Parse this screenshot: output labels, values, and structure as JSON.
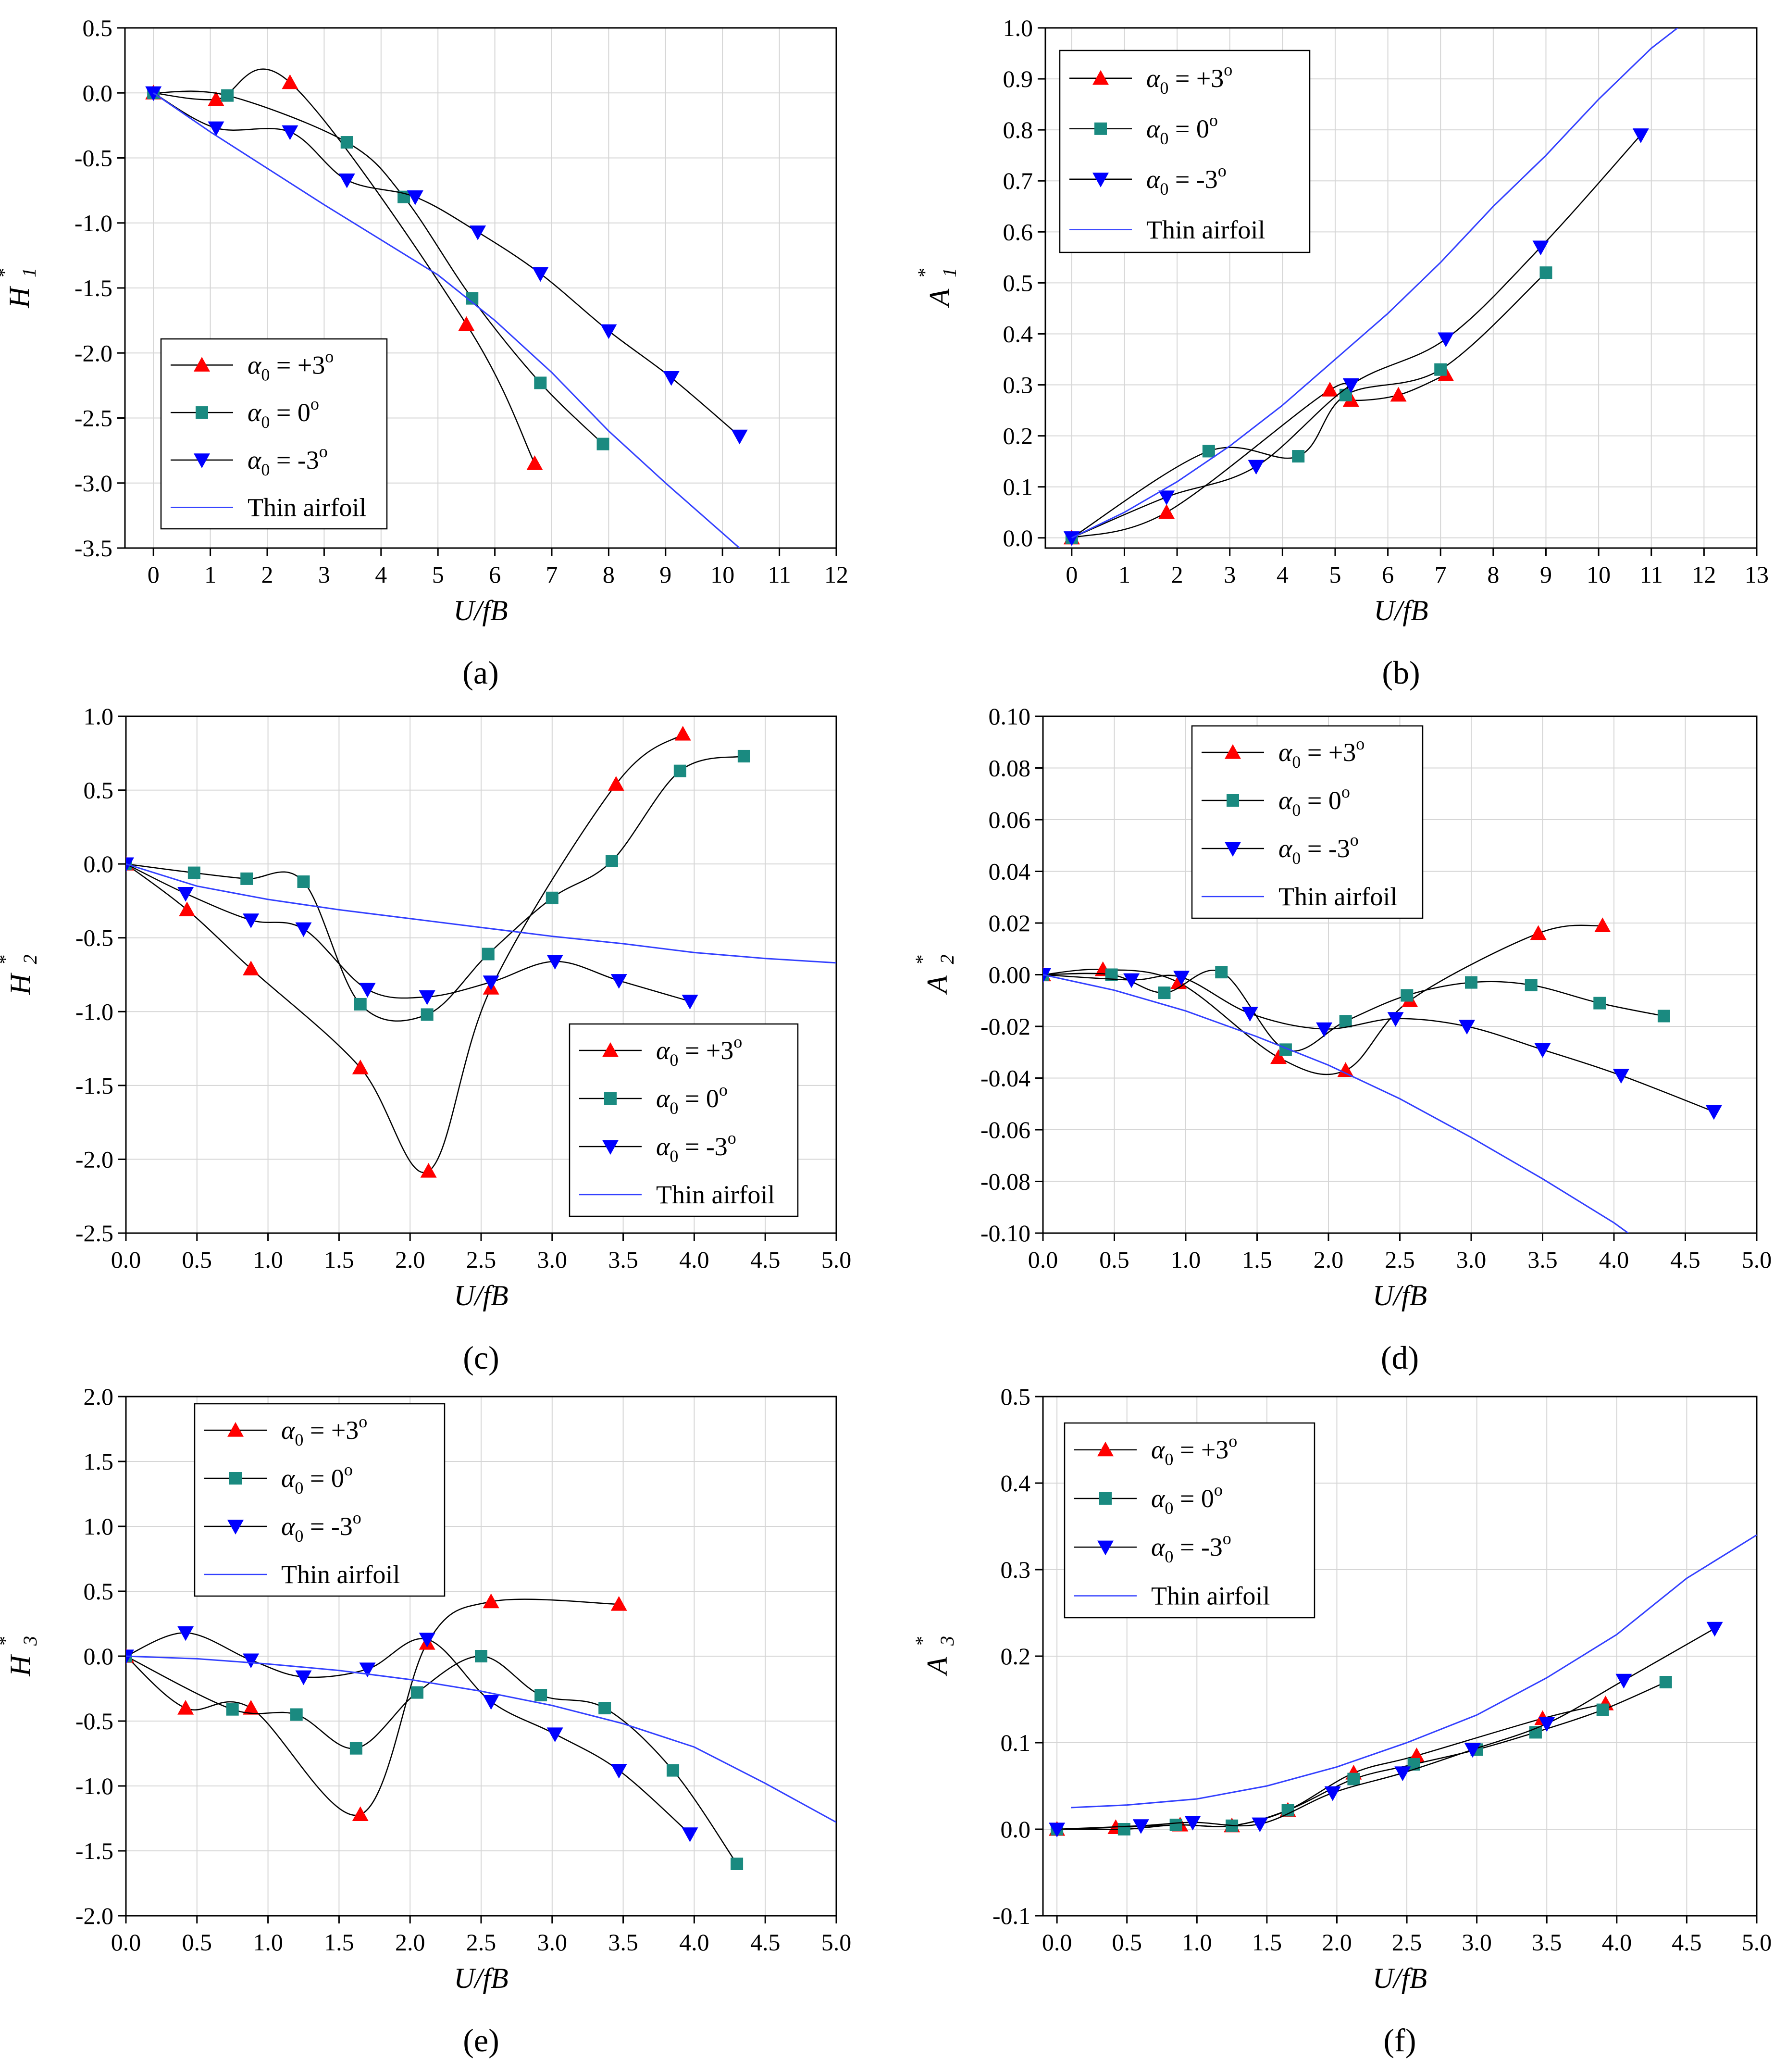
{
  "colors": {
    "plus3": "#ff0000",
    "zero": "#1a8a80",
    "minus3": "#0000ff",
    "thin": "#3340ff",
    "connector": "#000000",
    "grid": "#d6d6d6"
  },
  "legend_labels": {
    "alpha": "α",
    "sub": "0",
    "plus3": " = +3",
    "zero": " =  0",
    "minus3": " = -3",
    "degree": "o",
    "thin": "Thin airfoil"
  },
  "chart_data": [
    {
      "id": "a",
      "type": "line",
      "panel_label": "(a)",
      "xlabel": "U/fB",
      "ylabel": "H",
      "ylabel_sub": "1",
      "ylabel_sup": "*",
      "xlim": [
        -0.5,
        12
      ],
      "ylim": [
        -3.5,
        0.5
      ],
      "xticks": [
        0,
        1,
        2,
        3,
        4,
        5,
        6,
        7,
        8,
        9,
        10,
        11,
        12
      ],
      "xtick_labels": [
        "0",
        "1",
        "2",
        "3",
        "4",
        "5",
        "6",
        "7",
        "8",
        "9",
        "10",
        "11",
        "12"
      ],
      "yticks": [
        -3.5,
        -3,
        -2.5,
        -2,
        -1.5,
        -1,
        -0.5,
        0,
        0.5
      ],
      "ytick_labels": [
        "-3.5",
        "-3.0",
        "-2.5",
        "-2.0",
        "-1.5",
        "-1.0",
        "-0.5",
        "0.0",
        "0.5"
      ],
      "legend_position": "bottom-left",
      "series": [
        {
          "name": "α0 = +3°",
          "key": "plus3",
          "marker": "triangle-up",
          "x": [
            0,
            1.1,
            2.4,
            5.5,
            6.7
          ],
          "y": [
            0,
            -0.05,
            0.08,
            -1.78,
            -2.85
          ]
        },
        {
          "name": "α0 = 0°",
          "key": "zero",
          "marker": "square",
          "x": [
            0,
            1.3,
            3.4,
            4.4,
            5.6,
            6.8,
            7.9
          ],
          "y": [
            0,
            -0.02,
            -0.38,
            -0.8,
            -1.58,
            -2.23,
            -2.7
          ]
        },
        {
          "name": "α0 = -3°",
          "key": "minus3",
          "marker": "triangle-down",
          "x": [
            0,
            1.1,
            2.4,
            3.4,
            4.6,
            5.7,
            6.8,
            8.0,
            9.1,
            10.3
          ],
          "y": [
            0,
            -0.27,
            -0.3,
            -0.67,
            -0.8,
            -1.07,
            -1.39,
            -1.83,
            -2.19,
            -2.64
          ]
        },
        {
          "name": "Thin airfoil",
          "key": "thin",
          "marker": "none",
          "x": [
            0,
            1,
            2,
            3,
            4,
            5,
            6,
            7,
            8,
            9,
            10.3
          ],
          "y": [
            0,
            -0.3,
            -0.58,
            -0.86,
            -1.13,
            -1.4,
            -1.75,
            -2.15,
            -2.6,
            -3.0,
            -3.5
          ]
        }
      ]
    },
    {
      "id": "b",
      "type": "line",
      "panel_label": "(b)",
      "xlabel": "U/fB",
      "ylabel": "A",
      "ylabel_sub": "1",
      "ylabel_sup": "*",
      "xlim": [
        -0.5,
        13
      ],
      "ylim": [
        -0.02,
        1.0
      ],
      "xticks": [
        0,
        1,
        2,
        3,
        4,
        5,
        6,
        7,
        8,
        9,
        10,
        11,
        12,
        13
      ],
      "xtick_labels": [
        "0",
        "1",
        "2",
        "3",
        "4",
        "5",
        "6",
        "7",
        "8",
        "9",
        "10",
        "11",
        "12",
        "13"
      ],
      "yticks": [
        0,
        0.1,
        0.2,
        0.3,
        0.4,
        0.5,
        0.6,
        0.7,
        0.8,
        0.9,
        1.0
      ],
      "ytick_labels": [
        "0.0",
        "0.1",
        "0.2",
        "0.3",
        "0.4",
        "0.5",
        "0.6",
        "0.7",
        "0.8",
        "0.9",
        "1.0"
      ],
      "legend_position": "top-left",
      "series": [
        {
          "name": "α0 = +3°",
          "key": "plus3",
          "marker": "triangle-up",
          "x": [
            0,
            1.8,
            4.9,
            5.3,
            6.2,
            7.1
          ],
          "y": [
            0,
            0.05,
            0.29,
            0.27,
            0.28,
            0.32
          ]
        },
        {
          "name": "α0 = 0°",
          "key": "zero",
          "marker": "square",
          "x": [
            0,
            2.6,
            4.3,
            5.2,
            7.0,
            9.0
          ],
          "y": [
            0,
            0.17,
            0.16,
            0.28,
            0.33,
            0.52
          ]
        },
        {
          "name": "α0 = -3°",
          "key": "minus3",
          "marker": "triangle-down",
          "x": [
            0,
            1.8,
            3.5,
            5.3,
            7.1,
            8.9,
            10.8
          ],
          "y": [
            0,
            0.08,
            0.14,
            0.3,
            0.39,
            0.57,
            0.79
          ]
        },
        {
          "name": "Thin airfoil",
          "key": "thin",
          "marker": "none",
          "x": [
            0,
            1,
            2,
            3,
            4,
            5,
            6,
            7,
            8,
            9,
            10,
            11,
            11.5
          ],
          "y": [
            0,
            0.05,
            0.11,
            0.18,
            0.26,
            0.35,
            0.44,
            0.54,
            0.65,
            0.75,
            0.86,
            0.96,
            1.0
          ]
        }
      ]
    },
    {
      "id": "c",
      "type": "line",
      "panel_label": "(c)",
      "xlabel": "U/fB",
      "ylabel": "H",
      "ylabel_sub": "2",
      "ylabel_sup": "*",
      "xlim": [
        0,
        5
      ],
      "ylim": [
        -2.5,
        1.0
      ],
      "xticks": [
        0,
        0.5,
        1,
        1.5,
        2,
        2.5,
        3,
        3.5,
        4,
        4.5,
        5
      ],
      "xtick_labels": [
        "0.0",
        "0.5",
        "1.0",
        "1.5",
        "2.0",
        "2.5",
        "3.0",
        "3.5",
        "4.0",
        "4.5",
        "5.0"
      ],
      "yticks": [
        -2.5,
        -2,
        -1.5,
        -1,
        -0.5,
        0,
        0.5,
        1.0
      ],
      "ytick_labels": [
        "-2.5",
        "-2.0",
        "-1.5",
        "-1.0",
        "-0.5",
        "0.0",
        "0.5",
        "1.0"
      ],
      "legend_position": "bottom-right",
      "series": [
        {
          "name": "α0 = +3°",
          "key": "plus3",
          "marker": "triangle-up",
          "x": [
            0,
            0.43,
            0.88,
            1.65,
            2.13,
            2.57,
            3.45,
            3.92
          ],
          "y": [
            0,
            -0.31,
            -0.71,
            -1.38,
            -2.08,
            -0.84,
            0.54,
            0.88
          ]
        },
        {
          "name": "α0 = 0°",
          "key": "zero",
          "marker": "square",
          "x": [
            0,
            0.48,
            0.85,
            1.25,
            1.65,
            2.12,
            2.55,
            3.0,
            3.42,
            3.9,
            4.35
          ],
          "y": [
            0,
            -0.06,
            -0.1,
            -0.12,
            -0.95,
            -1.02,
            -0.61,
            -0.23,
            0.02,
            0.63,
            0.73
          ]
        },
        {
          "name": "α0 = -3°",
          "key": "minus3",
          "marker": "triangle-down",
          "x": [
            0,
            0.42,
            0.88,
            1.25,
            1.7,
            2.12,
            2.57,
            3.02,
            3.47,
            3.97
          ],
          "y": [
            0,
            -0.2,
            -0.38,
            -0.44,
            -0.85,
            -0.9,
            -0.8,
            -0.66,
            -0.79,
            -0.93
          ]
        },
        {
          "name": "Thin airfoil",
          "key": "thin",
          "marker": "none",
          "x": [
            0,
            0.5,
            1,
            1.5,
            2,
            2.5,
            3,
            3.5,
            4,
            4.5,
            5
          ],
          "y": [
            0,
            -0.15,
            -0.24,
            -0.31,
            -0.37,
            -0.43,
            -0.49,
            -0.54,
            -0.6,
            -0.64,
            -0.67
          ]
        }
      ]
    },
    {
      "id": "d",
      "type": "line",
      "panel_label": "(d)",
      "xlabel": "U/fB",
      "ylabel": "A",
      "ylabel_sub": "2",
      "ylabel_sup": "*",
      "xlim": [
        0,
        5
      ],
      "ylim": [
        -0.1,
        0.1
      ],
      "xticks": [
        0,
        0.5,
        1,
        1.5,
        2,
        2.5,
        3,
        3.5,
        4,
        4.5,
        5
      ],
      "xtick_labels": [
        "0.0",
        "0.5",
        "1.0",
        "1.5",
        "2.0",
        "2.5",
        "3.0",
        "3.5",
        "4.0",
        "4.5",
        "5.0"
      ],
      "yticks": [
        -0.1,
        -0.08,
        -0.06,
        -0.04,
        -0.02,
        0,
        0.02,
        0.04,
        0.06,
        0.08,
        0.1
      ],
      "ytick_labels": [
        "-0.10",
        "-0.08",
        "-0.06",
        "-0.04",
        "-0.02",
        "0.00",
        "0.02",
        "0.04",
        "0.06",
        "0.08",
        "0.10"
      ],
      "legend_position": "top-center",
      "series": [
        {
          "name": "α0 = +3°",
          "key": "plus3",
          "marker": "triangle-up",
          "x": [
            0,
            0.42,
            0.95,
            1.65,
            2.12,
            2.57,
            3.47,
            3.92
          ],
          "y": [
            0,
            0.002,
            -0.003,
            -0.032,
            -0.037,
            -0.01,
            0.016,
            0.019
          ]
        },
        {
          "name": "α0 = 0°",
          "key": "zero",
          "marker": "square",
          "x": [
            0,
            0.48,
            0.85,
            1.25,
            1.7,
            2.12,
            2.55,
            3.0,
            3.42,
            3.9,
            4.35
          ],
          "y": [
            0,
            0.0,
            -0.007,
            0.001,
            -0.029,
            -0.018,
            -0.008,
            -0.003,
            -0.004,
            -0.011,
            -0.016
          ]
        },
        {
          "name": "α0 = -3°",
          "key": "minus3",
          "marker": "triangle-down",
          "x": [
            0,
            0.62,
            0.97,
            1.45,
            1.97,
            2.47,
            2.97,
            3.5,
            4.05,
            4.7
          ],
          "y": [
            0,
            -0.002,
            -0.001,
            -0.015,
            -0.021,
            -0.017,
            -0.02,
            -0.029,
            -0.039,
            -0.053
          ]
        },
        {
          "name": "Thin airfoil",
          "key": "thin",
          "marker": "none",
          "x": [
            0,
            0.5,
            1,
            1.5,
            2,
            2.5,
            3,
            3.5,
            4,
            4.1
          ],
          "y": [
            0,
            -0.006,
            -0.014,
            -0.024,
            -0.035,
            -0.048,
            -0.063,
            -0.079,
            -0.096,
            -0.1
          ]
        }
      ]
    },
    {
      "id": "e",
      "type": "line",
      "panel_label": "(e)",
      "xlabel": "U/fB",
      "ylabel": "H",
      "ylabel_sub": "3",
      "ylabel_sup": "*",
      "xlim": [
        0,
        5
      ],
      "ylim": [
        -2.0,
        2.0
      ],
      "xticks": [
        0,
        0.5,
        1,
        1.5,
        2,
        2.5,
        3,
        3.5,
        4,
        4.5,
        5
      ],
      "xtick_labels": [
        "0.0",
        "0.5",
        "1.0",
        "1.5",
        "2.0",
        "2.5",
        "3.0",
        "3.5",
        "4.0",
        "4.5",
        "5.0"
      ],
      "yticks": [
        -2,
        -1.5,
        -1,
        -0.5,
        0,
        0.5,
        1,
        1.5,
        2
      ],
      "ytick_labels": [
        "-2.0",
        "-1.5",
        "-1.0",
        "-0.5",
        "0.0",
        "0.5",
        "1.0",
        "1.5",
        "2.0"
      ],
      "legend_position": "top-left",
      "series": [
        {
          "name": "α0 = +3°",
          "key": "plus3",
          "marker": "triangle-up",
          "x": [
            0,
            0.42,
            0.88,
            1.65,
            2.12,
            2.57,
            3.47
          ],
          "y": [
            0,
            -0.4,
            -0.4,
            -1.22,
            0.1,
            0.42,
            0.4
          ]
        },
        {
          "name": "α0 = 0°",
          "key": "zero",
          "marker": "square",
          "x": [
            0,
            0.75,
            1.2,
            1.62,
            2.05,
            2.5,
            2.92,
            3.37,
            3.85,
            4.3
          ],
          "y": [
            0,
            -0.41,
            -0.45,
            -0.71,
            -0.28,
            0.0,
            -0.3,
            -0.4,
            -0.88,
            -1.6
          ]
        },
        {
          "name": "α0 = -3°",
          "key": "minus3",
          "marker": "triangle-down",
          "x": [
            0,
            0.42,
            0.88,
            1.25,
            1.7,
            2.12,
            2.57,
            3.02,
            3.47,
            3.97
          ],
          "y": [
            0,
            0.18,
            -0.03,
            -0.16,
            -0.1,
            0.13,
            -0.35,
            -0.6,
            -0.88,
            -1.37
          ]
        },
        {
          "name": "Thin airfoil",
          "key": "thin",
          "marker": "none",
          "x": [
            0,
            0.5,
            1,
            1.5,
            2,
            2.5,
            3,
            3.5,
            4,
            4.5,
            5
          ],
          "y": [
            0,
            -0.02,
            -0.06,
            -0.11,
            -0.18,
            -0.27,
            -0.38,
            -0.52,
            -0.7,
            -0.98,
            -1.28
          ]
        }
      ]
    },
    {
      "id": "f",
      "type": "line",
      "panel_label": "(f)",
      "xlabel": "U/fB",
      "ylabel": "A",
      "ylabel_sub": "3",
      "ylabel_sup": "*",
      "xlim": [
        -0.1,
        5
      ],
      "ylim": [
        -0.1,
        0.5
      ],
      "xticks": [
        0,
        0.5,
        1,
        1.5,
        2,
        2.5,
        3,
        3.5,
        4,
        4.5,
        5
      ],
      "xtick_labels": [
        "0.0",
        "0.5",
        "1.0",
        "1.5",
        "2.0",
        "2.5",
        "3.0",
        "3.5",
        "4.0",
        "4.5",
        "5.0"
      ],
      "yticks": [
        -0.1,
        0,
        0.1,
        0.2,
        0.3,
        0.4,
        0.5
      ],
      "ytick_labels": [
        "-0.1",
        "0.0",
        "0.1",
        "0.2",
        "0.3",
        "0.4",
        "0.5"
      ],
      "legend_position": "top-left",
      "series": [
        {
          "name": "α0 = +3°",
          "key": "plus3",
          "marker": "triangle-up",
          "x": [
            0,
            0.42,
            0.88,
            1.25,
            1.65,
            2.12,
            2.57,
            3.47,
            3.92
          ],
          "y": [
            0,
            0.002,
            0.005,
            0.004,
            0.022,
            0.065,
            0.085,
            0.128,
            0.145
          ]
        },
        {
          "name": "α0 = 0°",
          "key": "zero",
          "marker": "square",
          "x": [
            0,
            0.48,
            0.85,
            1.25,
            1.65,
            2.12,
            2.55,
            3.0,
            3.42,
            3.9,
            4.35
          ],
          "y": [
            0,
            0.0,
            0.005,
            0.004,
            0.022,
            0.058,
            0.075,
            0.092,
            0.112,
            0.138,
            0.17
          ]
        },
        {
          "name": "α0 = -3°",
          "key": "minus3",
          "marker": "triangle-down",
          "x": [
            0,
            0.6,
            0.97,
            1.45,
            1.97,
            2.47,
            2.97,
            3.5,
            4.05,
            4.7
          ],
          "y": [
            0,
            0.004,
            0.008,
            0.006,
            0.042,
            0.065,
            0.092,
            0.122,
            0.172,
            0.232
          ]
        },
        {
          "name": "Thin airfoil",
          "key": "thin",
          "marker": "none",
          "x": [
            0.1,
            0.5,
            1,
            1.5,
            2,
            2.5,
            3,
            3.5,
            4,
            4.5,
            5
          ],
          "y": [
            0.025,
            0.028,
            0.035,
            0.05,
            0.072,
            0.1,
            0.132,
            0.175,
            0.225,
            0.29,
            0.34
          ]
        }
      ]
    }
  ]
}
